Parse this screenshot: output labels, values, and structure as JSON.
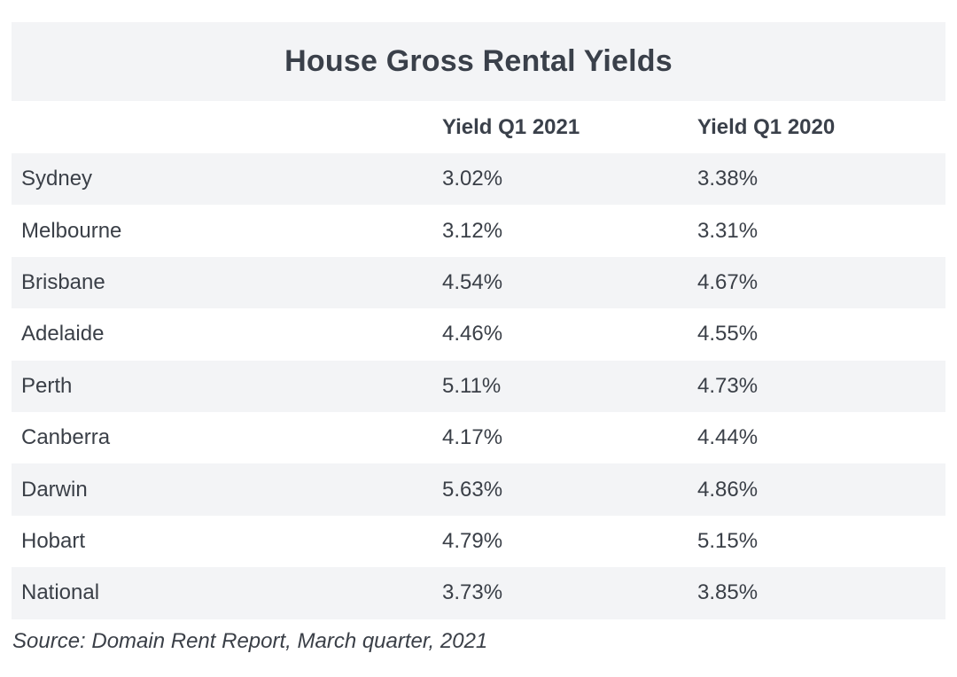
{
  "title": "House Gross Rental Yields",
  "columns": [
    "",
    "Yield Q1 2021",
    "Yield Q1 2020"
  ],
  "rows": [
    {
      "city": "Sydney",
      "y2021": "3.02%",
      "y2020": "3.38%"
    },
    {
      "city": "Melbourne",
      "y2021": "3.12%",
      "y2020": "3.31%"
    },
    {
      "city": "Brisbane",
      "y2021": "4.54%",
      "y2020": "4.67%"
    },
    {
      "city": "Adelaide",
      "y2021": "4.46%",
      "y2020": "4.55%"
    },
    {
      "city": "Perth",
      "y2021": "5.11%",
      "y2020": "4.73%"
    },
    {
      "city": "Canberra",
      "y2021": "4.17%",
      "y2020": "4.44%"
    },
    {
      "city": "Darwin",
      "y2021": "5.63%",
      "y2020": "4.86%"
    },
    {
      "city": "Hobart",
      "y2021": "4.79%",
      "y2020": "5.15%"
    },
    {
      "city": "National",
      "y2021": "3.73%",
      "y2020": "3.85%"
    }
  ],
  "source": "Source: Domain Rent Report, March quarter, 2021",
  "colors": {
    "shaded_row": "#f3f4f6",
    "text": "#3a3f47"
  }
}
